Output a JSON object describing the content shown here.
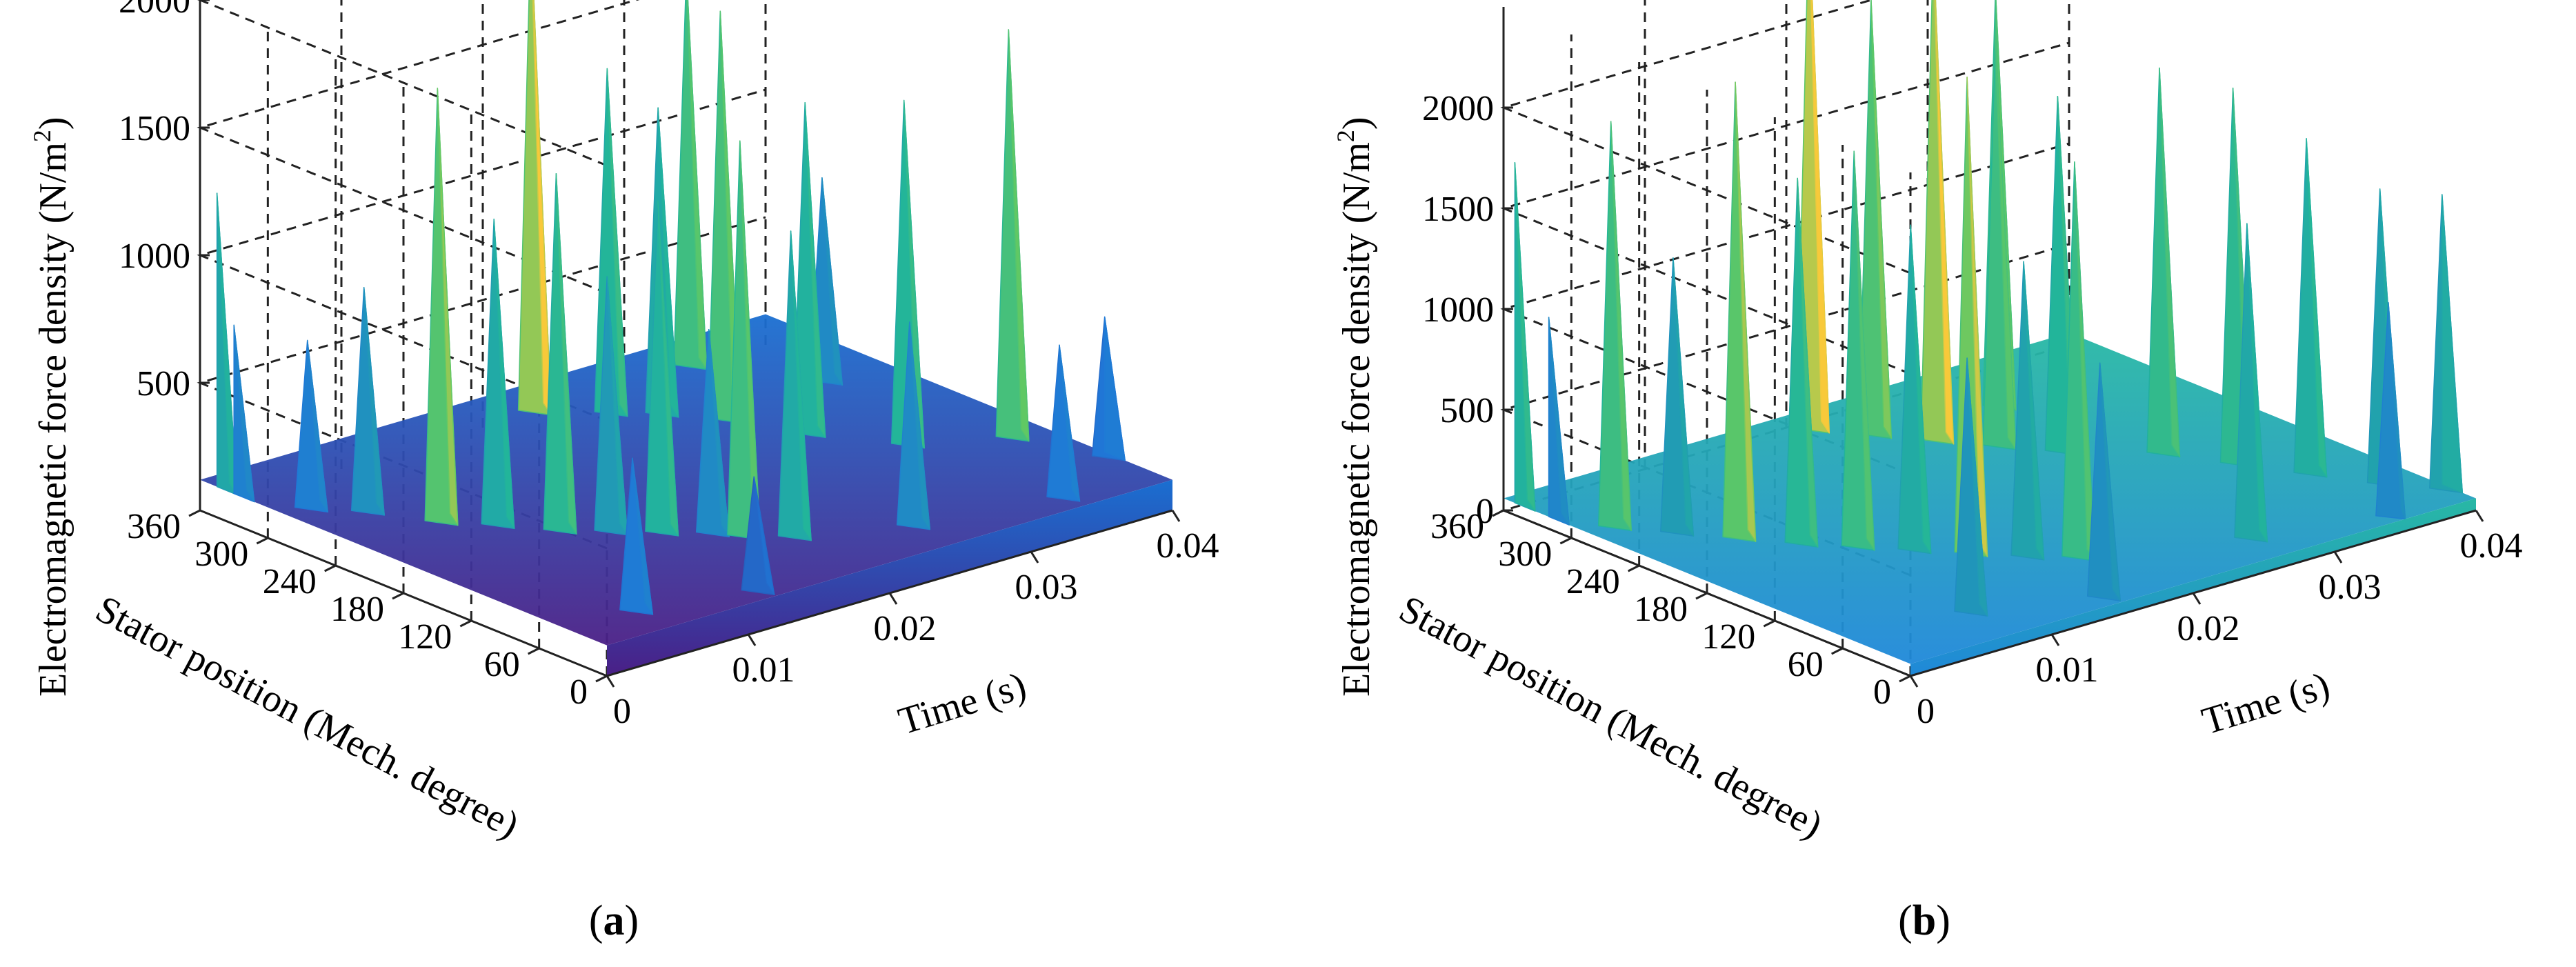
{
  "figure": {
    "panels": [
      {
        "caption_pre": "(",
        "caption_letter": "a",
        "caption_post": ")"
      },
      {
        "caption_pre": "(",
        "caption_letter": "b",
        "caption_post": ")"
      }
    ]
  },
  "colors": {
    "low": "#3a1e7a",
    "mid": "#1f78d8",
    "teal": "#22b59a",
    "green": "#60c864",
    "high": "#f8c93a",
    "grid": "#222222"
  },
  "chart_data": [
    {
      "type": "surface",
      "title": "",
      "xlabel": "Time (s)",
      "ylabel": "Stator position (Mech. degree)",
      "zlabel_main": "Electromagnetic force density (N/m",
      "zlabel_sup": "2",
      "zlabel_end": ")",
      "xlim": [
        0,
        0.04
      ],
      "ylim": [
        0,
        360
      ],
      "zlim": [
        0,
        2000
      ],
      "x_ticks": [
        "0",
        "0.01",
        "0.02",
        "0.03",
        "0.04"
      ],
      "y_ticks": [
        "0",
        "60",
        "120",
        "180",
        "240",
        "300",
        "360"
      ],
      "z_ticks": [
        "500",
        "1000",
        "1500",
        "2000"
      ],
      "z_tick_values": [
        500,
        1000,
        1500,
        2000
      ],
      "peaks": [
        {
          "t": 0.0,
          "p": 345,
          "v": 1270
        },
        {
          "t": 0.0,
          "p": 330,
          "v": 780
        },
        {
          "t": 0.002,
          "p": 290,
          "v": 760
        },
        {
          "t": 0.004,
          "p": 265,
          "v": 980
        },
        {
          "t": 0.006,
          "p": 225,
          "v": 1800
        },
        {
          "t": 0.008,
          "p": 200,
          "v": 1300
        },
        {
          "t": 0.01,
          "p": 170,
          "v": 1500
        },
        {
          "t": 0.012,
          "p": 150,
          "v": 1100
        },
        {
          "t": 0.014,
          "p": 130,
          "v": 1400
        },
        {
          "t": 0.016,
          "p": 110,
          "v": 900
        },
        {
          "t": 0.017,
          "p": 95,
          "v": 1650
        },
        {
          "t": 0.019,
          "p": 75,
          "v": 1300
        },
        {
          "t": 0.021,
          "p": 330,
          "v": 2000
        },
        {
          "t": 0.024,
          "p": 300,
          "v": 1450
        },
        {
          "t": 0.026,
          "p": 280,
          "v": 1300
        },
        {
          "t": 0.028,
          "p": 250,
          "v": 1700
        },
        {
          "t": 0.03,
          "p": 200,
          "v": 1400
        },
        {
          "t": 0.032,
          "p": 330,
          "v": 1650
        },
        {
          "t": 0.033,
          "p": 150,
          "v": 1450
        },
        {
          "t": 0.036,
          "p": 260,
          "v": 900
        },
        {
          "t": 0.038,
          "p": 120,
          "v": 1700
        },
        {
          "t": 0.04,
          "p": 60,
          "v": 650
        },
        {
          "t": 0.005,
          "p": 40,
          "v": 700
        },
        {
          "t": 0.012,
          "p": 20,
          "v": 550
        },
        {
          "t": 0.025,
          "p": 45,
          "v": 900
        },
        {
          "t": 0.034,
          "p": 25,
          "v": 700
        }
      ]
    },
    {
      "type": "surface",
      "title": "",
      "xlabel": "Time (s)",
      "ylabel": "Stator position (Mech. degree)",
      "zlabel_main": "Electromagnetic force density (N/m",
      "zlabel_sup": "2",
      "zlabel_end": ")",
      "xlim": [
        0,
        0.04
      ],
      "ylim": [
        0,
        360
      ],
      "zlim": [
        0,
        2500
      ],
      "x_ticks": [
        "0",
        "0.01",
        "0.02",
        "0.03",
        "0.04"
      ],
      "y_ticks": [
        "0",
        "60",
        "120",
        "180",
        "240",
        "300",
        "360"
      ],
      "z_ticks": [
        "0",
        "500",
        "1000",
        "1500",
        "2000"
      ],
      "z_tick_values": [
        0,
        500,
        1000,
        1500,
        2000
      ],
      "peaks": [
        {
          "t": 0.0,
          "p": 350,
          "v": 1750
        },
        {
          "t": 0.0,
          "p": 320,
          "v": 1050
        },
        {
          "t": 0.002,
          "p": 290,
          "v": 2050
        },
        {
          "t": 0.004,
          "p": 260,
          "v": 1400
        },
        {
          "t": 0.006,
          "p": 230,
          "v": 2300
        },
        {
          "t": 0.008,
          "p": 200,
          "v": 1850
        },
        {
          "t": 0.01,
          "p": 175,
          "v": 2000
        },
        {
          "t": 0.012,
          "p": 150,
          "v": 1650
        },
        {
          "t": 0.014,
          "p": 125,
          "v": 2400
        },
        {
          "t": 0.016,
          "p": 100,
          "v": 1500
        },
        {
          "t": 0.018,
          "p": 80,
          "v": 2000
        },
        {
          "t": 0.02,
          "p": 340,
          "v": 2600
        },
        {
          "t": 0.022,
          "p": 310,
          "v": 2200
        },
        {
          "t": 0.024,
          "p": 280,
          "v": 2500
        },
        {
          "t": 0.026,
          "p": 250,
          "v": 2050
        },
        {
          "t": 0.028,
          "p": 220,
          "v": 1800
        },
        {
          "t": 0.03,
          "p": 300,
          "v": 2100
        },
        {
          "t": 0.032,
          "p": 180,
          "v": 1950
        },
        {
          "t": 0.034,
          "p": 140,
          "v": 1900
        },
        {
          "t": 0.036,
          "p": 100,
          "v": 1700
        },
        {
          "t": 0.038,
          "p": 60,
          "v": 1500
        },
        {
          "t": 0.04,
          "p": 30,
          "v": 1500
        },
        {
          "t": 0.008,
          "p": 50,
          "v": 1300
        },
        {
          "t": 0.015,
          "p": 20,
          "v": 1200
        },
        {
          "t": 0.027,
          "p": 40,
          "v": 1600
        },
        {
          "t": 0.035,
          "p": 15,
          "v": 1100
        }
      ]
    }
  ]
}
